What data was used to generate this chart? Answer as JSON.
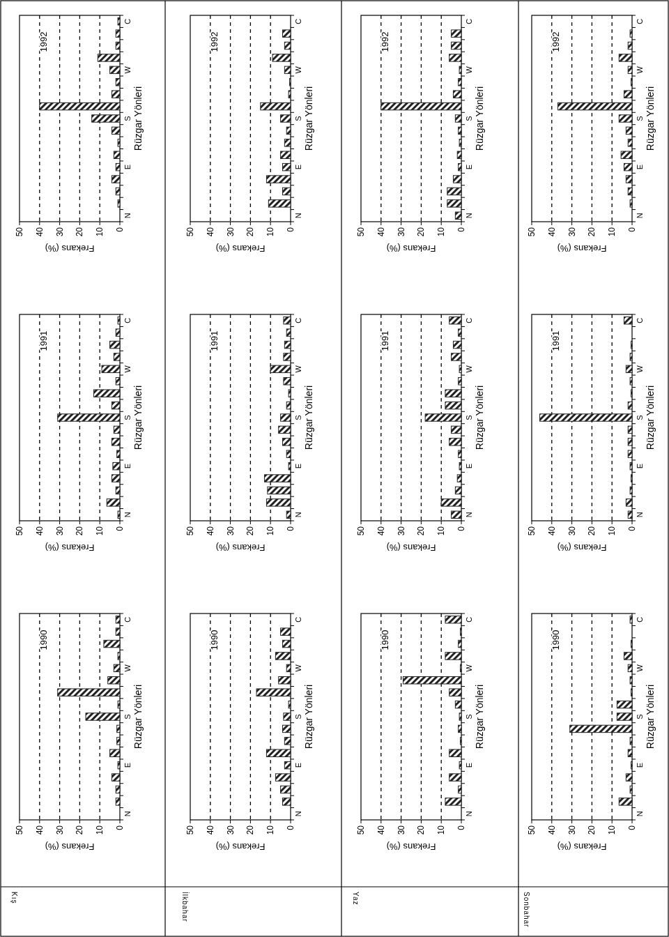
{
  "chart_data": [
    {
      "type": "bar",
      "orientation": "horizontal",
      "title": "1992",
      "xlabel": "Frekans (%)",
      "ylabel": "Rüzgar Yönleri",
      "categories": [
        "C",
        null,
        null,
        null,
        "W",
        null,
        null,
        null,
        "S",
        null,
        null,
        null,
        "E",
        null,
        null,
        null,
        "N"
      ],
      "values": [
        1,
        2,
        2,
        11,
        5,
        2,
        4,
        40,
        14,
        4,
        1,
        3,
        2,
        4,
        2,
        1,
        0
      ],
      "color": "#222222",
      "xlim": [
        50,
        0
      ],
      "xticks": [
        50,
        40,
        30,
        20,
        10,
        0
      ],
      "grid": "x"
    },
    {
      "type": "bar",
      "orientation": "horizontal",
      "title": "1992",
      "xlabel": "Frekans (%)",
      "ylabel": "Rüzgar Yönleri",
      "categories": [
        "C",
        null,
        null,
        null,
        "W",
        null,
        null,
        null,
        "S",
        null,
        null,
        null,
        "E",
        null,
        null,
        null,
        "N"
      ],
      "values": [
        0,
        4,
        3,
        9,
        3,
        0.5,
        1,
        15,
        5,
        2,
        3,
        5,
        4,
        12,
        4,
        11,
        0
      ],
      "color": "#222222",
      "xlim": [
        50,
        0
      ],
      "xticks": [
        50,
        40,
        30,
        20,
        10,
        0
      ],
      "grid": "x"
    },
    {
      "type": "bar",
      "orientation": "horizontal",
      "title": "1992",
      "xlabel": "Frekans (%)",
      "ylabel": "Rüzgar Yönleri",
      "categories": [
        "C",
        null,
        null,
        null,
        "W",
        null,
        null,
        null,
        "S",
        null,
        null,
        null,
        "E",
        null,
        null,
        null,
        "N"
      ],
      "values": [
        0,
        5,
        5,
        6,
        1,
        1.5,
        4,
        40,
        3,
        1.5,
        1,
        2,
        1.5,
        4,
        7,
        7,
        3
      ],
      "color": "#222222",
      "xlim": [
        50,
        0
      ],
      "xticks": [
        50,
        40,
        30,
        20,
        10,
        0
      ],
      "grid": "x"
    },
    {
      "type": "bar",
      "orientation": "horizontal",
      "title": "1992",
      "xlabel": "Frekans (%)",
      "ylabel": "Rüzgar Yönleri",
      "categories": [
        "C",
        null,
        null,
        null,
        "W",
        null,
        null,
        null,
        "S",
        null,
        null,
        null,
        "E",
        null,
        null,
        null,
        "N"
      ],
      "values": [
        0,
        1,
        2,
        6.5,
        2,
        0.5,
        4,
        37,
        6.5,
        3,
        2,
        5.5,
        4,
        3,
        2,
        1,
        0
      ],
      "color": "#222222",
      "xlim": [
        50,
        0
      ],
      "xticks": [
        50,
        40,
        30,
        20,
        10,
        0
      ],
      "grid": "x"
    },
    {
      "type": "bar",
      "orientation": "horizontal",
      "title": "1991",
      "xlabel": "Frekans (%)",
      "ylabel": "Rüzgar Yönleri",
      "categories": [
        "C",
        null,
        null,
        null,
        "W",
        null,
        null,
        null,
        "S",
        null,
        null,
        null,
        "E",
        null,
        null,
        null,
        "N"
      ],
      "values": [
        1,
        2,
        5,
        3,
        9,
        2,
        13,
        4,
        31,
        3,
        4,
        1.5,
        3.5,
        4,
        2,
        6.5,
        1
      ],
      "color": "#222222",
      "xlim": [
        50,
        0
      ],
      "xticks": [
        50,
        40,
        30,
        20,
        10,
        0
      ],
      "grid": "x"
    },
    {
      "type": "bar",
      "orientation": "horizontal",
      "title": "1991",
      "xlabel": "Frekans (%)",
      "ylabel": "Rüzgar Yönleri",
      "categories": [
        "C",
        null,
        null,
        null,
        "W",
        null,
        null,
        null,
        "S",
        null,
        null,
        null,
        "E",
        null,
        null,
        null,
        "N"
      ],
      "values": [
        3.5,
        2,
        3,
        3.5,
        10,
        3.5,
        1,
        2,
        5,
        6,
        4,
        2,
        1,
        13,
        11.5,
        12,
        2
      ],
      "color": "#222222",
      "xlim": [
        50,
        0
      ],
      "xticks": [
        50,
        40,
        30,
        20,
        10,
        0
      ],
      "grid": "x"
    },
    {
      "type": "bar",
      "orientation": "horizontal",
      "title": "1991",
      "xlabel": "Frekans (%)",
      "ylabel": "Rüzgar Yönleri",
      "categories": [
        "C",
        null,
        null,
        null,
        "W",
        null,
        null,
        null,
        "S",
        null,
        null,
        null,
        "E",
        null,
        null,
        null,
        "N"
      ],
      "values": [
        6,
        1.5,
        4,
        5,
        1,
        1.5,
        8,
        8,
        18,
        5,
        6,
        1.5,
        1,
        2,
        3,
        10,
        5
      ],
      "color": "#222222",
      "xlim": [
        50,
        0
      ],
      "xticks": [
        50,
        40,
        30,
        20,
        10,
        0
      ],
      "grid": "x"
    },
    {
      "type": "bar",
      "orientation": "horizontal",
      "title": "1991",
      "xlabel": "Frekans (%)",
      "ylabel": "Rüzgar Yönleri",
      "categories": [
        "C",
        null,
        null,
        null,
        "W",
        null,
        null,
        null,
        "S",
        null,
        null,
        null,
        "E",
        null,
        null,
        null,
        "N"
      ],
      "values": [
        4,
        0,
        0.5,
        1,
        3,
        1,
        0.5,
        2,
        46,
        2,
        2,
        2,
        1,
        0.5,
        1,
        3,
        2
      ],
      "color": "#222222",
      "xlim": [
        50,
        0
      ],
      "xticks": [
        50,
        40,
        30,
        20,
        10,
        0
      ],
      "grid": "x"
    },
    {
      "type": "bar",
      "orientation": "horizontal",
      "title": "1990",
      "xlabel": "Frekans (%)",
      "ylabel": "Rüzgar Yönleri",
      "categories": [
        "C",
        null,
        null,
        null,
        "W",
        null,
        null,
        null,
        "S",
        null,
        null,
        null,
        "E",
        null,
        null,
        null,
        "N"
      ],
      "values": [
        2,
        2,
        8,
        1,
        3,
        6,
        31,
        1,
        17,
        1.5,
        1.5,
        5,
        1,
        4,
        2,
        2,
        0
      ],
      "color": "#222222",
      "xlim": [
        50,
        0
      ],
      "xticks": [
        50,
        40,
        30,
        20,
        10,
        0
      ],
      "grid": "x",
      "annotations": [
        "Kış"
      ]
    },
    {
      "type": "bar",
      "orientation": "horizontal",
      "title": "1990",
      "xlabel": "Frekans (%)",
      "ylabel": "Rüzgar Yönleri",
      "categories": [
        "C",
        null,
        null,
        null,
        "W",
        null,
        null,
        null,
        "S",
        null,
        null,
        null,
        "E",
        null,
        null,
        null,
        "N"
      ],
      "values": [
        0,
        5,
        4,
        7.5,
        2,
        6,
        17,
        1,
        3.5,
        4,
        3,
        12,
        3,
        7.5,
        5,
        4,
        0
      ],
      "color": "#222222",
      "xlim": [
        50,
        0
      ],
      "xticks": [
        50,
        40,
        30,
        20,
        10,
        0
      ],
      "grid": "x",
      "annotations": [
        "İlkbahar"
      ]
    },
    {
      "type": "bar",
      "orientation": "horizontal",
      "title": "1990",
      "xlabel": "Frekans (%)",
      "ylabel": "Rüzgar Yönleri",
      "categories": [
        "C",
        null,
        null,
        null,
        "W",
        null,
        null,
        null,
        "S",
        null,
        null,
        null,
        "E",
        null,
        null,
        null,
        "N"
      ],
      "values": [
        8,
        0.5,
        1.5,
        8,
        0.5,
        29,
        6,
        3,
        1,
        1.5,
        0.5,
        6,
        1,
        6,
        1.5,
        8,
        0
      ],
      "color": "#222222",
      "xlim": [
        50,
        0
      ],
      "xticks": [
        50,
        40,
        30,
        20,
        10,
        0
      ],
      "grid": "x",
      "annotations": [
        "Yaz"
      ]
    },
    {
      "type": "bar",
      "orientation": "horizontal",
      "title": "1990",
      "xlabel": "Frekans (%)",
      "ylabel": "Rüzgar Yönleri",
      "categories": [
        "C",
        null,
        null,
        null,
        "W",
        null,
        null,
        null,
        "S",
        null,
        null,
        null,
        "E",
        null,
        null,
        null,
        "N"
      ],
      "values": [
        1,
        0,
        0.5,
        4,
        2,
        1,
        0.5,
        7.5,
        7.5,
        31,
        1,
        2,
        0.5,
        3,
        1,
        6.5,
        0
      ],
      "color": "#222222",
      "xlim": [
        50,
        0
      ],
      "xticks": [
        50,
        40,
        30,
        20,
        10,
        0
      ],
      "grid": "x",
      "annotations": [
        "Sonbahar"
      ]
    }
  ]
}
